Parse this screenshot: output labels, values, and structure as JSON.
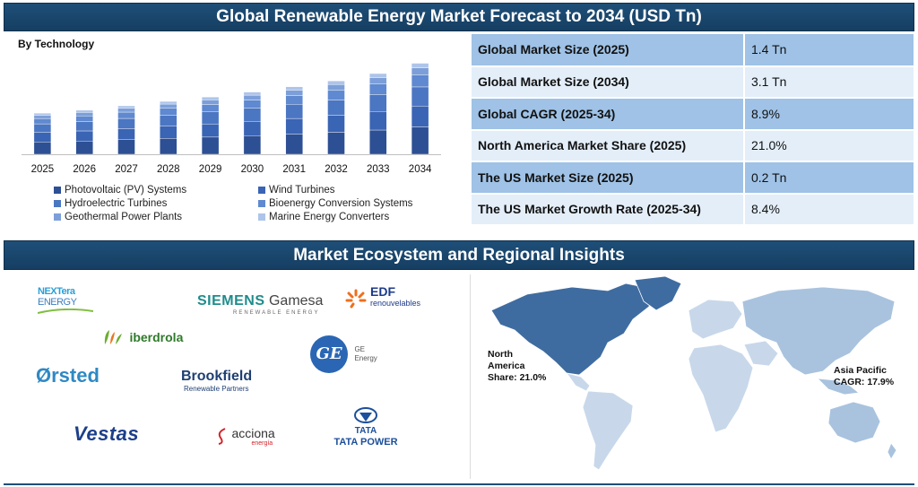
{
  "header": {
    "title": "Global Renewable Energy Market Forecast to 2034 (USD Tn)"
  },
  "chart_data": {
    "type": "bar",
    "stacked": true,
    "subtitle": "By Technology",
    "categories": [
      "2025",
      "2026",
      "2027",
      "2028",
      "2029",
      "2030",
      "2031",
      "2032",
      "2033",
      "2034"
    ],
    "totals": [
      1.4,
      1.5,
      1.65,
      1.8,
      1.95,
      2.12,
      2.3,
      2.5,
      2.75,
      3.1
    ],
    "series": [
      {
        "name": "Photovoltaic (PV) Systems",
        "color": "#2d4f94",
        "share": 0.3
      },
      {
        "name": "Wind Turbines",
        "color": "#3a64b4",
        "share": 0.23
      },
      {
        "name": "Hydroelectric Turbines",
        "color": "#4b76c2",
        "share": 0.21
      },
      {
        "name": "Bioenergy Conversion Systems",
        "color": "#5f89d0",
        "share": 0.13
      },
      {
        "name": "Geothermal Power Plants",
        "color": "#7c9fd9",
        "share": 0.08
      },
      {
        "name": "Marine Energy Converters",
        "color": "#aec4ea",
        "share": 0.05
      }
    ],
    "ylim": [
      0,
      3.3
    ],
    "grid": false,
    "legend_position": "bottom"
  },
  "stats": [
    {
      "label": "Global Market Size (2025)",
      "value": "1.4 Tn"
    },
    {
      "label": "Global Market Size (2034)",
      "value": "3.1 Tn"
    },
    {
      "label": "Global CAGR (2025-34)",
      "value": "8.9%"
    },
    {
      "label": "North America Market Share (2025)",
      "value": "21.0%"
    },
    {
      "label": "The US Market Size (2025)",
      "value": "0.2 Tn"
    },
    {
      "label": "The US Market Growth Rate (2025-34)",
      "value": "8.4%"
    }
  ],
  "section2": {
    "title": "Market Ecosystem and Regional Insights"
  },
  "logos": {
    "nextera_1": "NEXTera",
    "nextera_2": "ENERGY",
    "siemens": "SIEMENS",
    "gamesa": "Gamesa",
    "siemens_sub": "RENEWABLE ENERGY",
    "edf": "EDF",
    "edf_sub": "renouvelables",
    "iberdrola": "iberdrola",
    "ge_mark": "GE",
    "ge_1": "GE",
    "ge_2": "Energy",
    "orsted": "Ørsted",
    "brookfield": "Brookfield",
    "brookfield_sub": "Renewable Partners",
    "vestas": "Vestas",
    "acciona": "acciona",
    "acciona_sub": "energía",
    "tata": "TATA",
    "tata_power": "TATA POWER"
  },
  "map": {
    "na_label_1": "North",
    "na_label_2": "America",
    "na_label_3": "Share: 21.0%",
    "ap_label_1": "Asia Pacific",
    "ap_label_2": "CAGR: 17.9%",
    "colors": {
      "north_america": "#3f6ca0",
      "asia_pacific": "#a9c3de",
      "other": "#c8d8ea"
    }
  }
}
